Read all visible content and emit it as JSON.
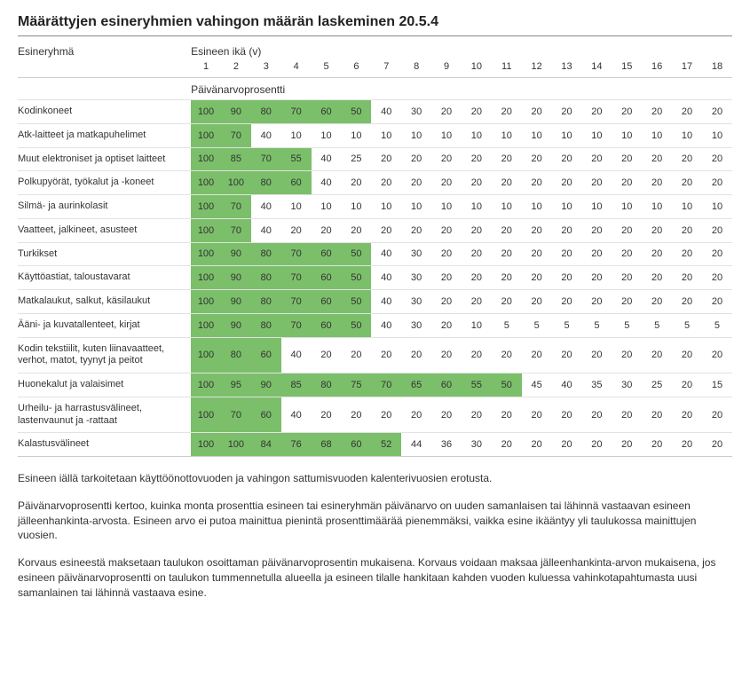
{
  "title": "Määrättyjen esineryhmien vahingon määrän laskeminen 20.5.4",
  "colhdr_label": "Esineryhmä",
  "colhdr_age": "Esineen ikä (v)",
  "colhdr_pct": "Päivänarvoprosentti",
  "years": [
    "1",
    "2",
    "3",
    "4",
    "5",
    "6",
    "7",
    "8",
    "9",
    "10",
    "11",
    "12",
    "13",
    "14",
    "15",
    "16",
    "17",
    "18"
  ],
  "highlight_color": "#7bbf6a",
  "rows": [
    {
      "label": "Kodinkoneet",
      "vals": [
        100,
        90,
        80,
        70,
        60,
        50,
        40,
        30,
        20,
        20,
        20,
        20,
        20,
        20,
        20,
        20,
        20,
        20
      ],
      "hl": 6
    },
    {
      "label": "Atk-laitteet ja matkapuhelimet",
      "vals": [
        100,
        70,
        40,
        10,
        10,
        10,
        10,
        10,
        10,
        10,
        10,
        10,
        10,
        10,
        10,
        10,
        10,
        10
      ],
      "hl": 2
    },
    {
      "label": "Muut elektroniset ja optiset laitteet",
      "vals": [
        100,
        85,
        70,
        55,
        40,
        25,
        20,
        20,
        20,
        20,
        20,
        20,
        20,
        20,
        20,
        20,
        20,
        20
      ],
      "hl": 4
    },
    {
      "label": "Polkupyörät, työkalut ja -koneet",
      "vals": [
        100,
        100,
        80,
        60,
        40,
        20,
        20,
        20,
        20,
        20,
        20,
        20,
        20,
        20,
        20,
        20,
        20,
        20
      ],
      "hl": 4
    },
    {
      "label": "Silmä- ja aurinkolasit",
      "vals": [
        100,
        70,
        40,
        10,
        10,
        10,
        10,
        10,
        10,
        10,
        10,
        10,
        10,
        10,
        10,
        10,
        10,
        10
      ],
      "hl": 2
    },
    {
      "label": "Vaatteet, jalkineet, asusteet",
      "vals": [
        100,
        70,
        40,
        20,
        20,
        20,
        20,
        20,
        20,
        20,
        20,
        20,
        20,
        20,
        20,
        20,
        20,
        20
      ],
      "hl": 2
    },
    {
      "label": "Turkikset",
      "vals": [
        100,
        90,
        80,
        70,
        60,
        50,
        40,
        30,
        20,
        20,
        20,
        20,
        20,
        20,
        20,
        20,
        20,
        20
      ],
      "hl": 6
    },
    {
      "label": "Käyttöastiat, taloustavarat",
      "vals": [
        100,
        90,
        80,
        70,
        60,
        50,
        40,
        30,
        20,
        20,
        20,
        20,
        20,
        20,
        20,
        20,
        20,
        20
      ],
      "hl": 6
    },
    {
      "label": "Matkalaukut, salkut, käsilaukut",
      "vals": [
        100,
        90,
        80,
        70,
        60,
        50,
        40,
        30,
        20,
        20,
        20,
        20,
        20,
        20,
        20,
        20,
        20,
        20
      ],
      "hl": 6
    },
    {
      "label": "Ääni- ja kuvatallenteet, kirjat",
      "vals": [
        100,
        90,
        80,
        70,
        60,
        50,
        40,
        30,
        20,
        10,
        5,
        5,
        5,
        5,
        5,
        5,
        5,
        5
      ],
      "hl": 6
    },
    {
      "label": "Kodin tekstiilit, kuten liinavaatteet, verhot, matot, tyynyt ja peitot",
      "vals": [
        100,
        80,
        60,
        40,
        20,
        20,
        20,
        20,
        20,
        20,
        20,
        20,
        20,
        20,
        20,
        20,
        20,
        20
      ],
      "hl": 3
    },
    {
      "label": "Huonekalut ja valaisimet",
      "vals": [
        100,
        95,
        90,
        85,
        80,
        75,
        70,
        65,
        60,
        55,
        50,
        45,
        40,
        35,
        30,
        25,
        20,
        15
      ],
      "hl": 11
    },
    {
      "label": "Urheilu- ja harrastusvälineet, lastenvaunut ja -rattaat",
      "vals": [
        100,
        70,
        60,
        40,
        20,
        20,
        20,
        20,
        20,
        20,
        20,
        20,
        20,
        20,
        20,
        20,
        20,
        20
      ],
      "hl": 3
    },
    {
      "label": "Kalastusvälineet",
      "vals": [
        100,
        100,
        84,
        76,
        68,
        60,
        52,
        44,
        36,
        30,
        20,
        20,
        20,
        20,
        20,
        20,
        20,
        20
      ],
      "hl": 7
    }
  ],
  "notes": [
    "Esineen iällä tarkoitetaan käyttöönottovuoden ja vahingon sattumisvuoden kalenterivuosien erotusta.",
    "Päivänarvoprosentti kertoo, kuinka monta prosenttia esineen tai esineryhmän päivänarvo on uuden samanlaisen tai lähinnä vastaavan esineen jälleenhankinta-arvosta. Esineen arvo ei putoa mainittua pienintä prosenttimäärää pienemmäksi, vaikka esine ikääntyy yli taulukossa mainittujen vuosien.",
    "Korvaus esineestä maksetaan taulukon osoittaman päivänarvoprosentin mukaisena. Korvaus voidaan maksaa jälleenhankinta-arvon mukaisena, jos esineen päivänarvoprosentti on taulukon tummennetulla alueella ja esineen tilalle hankitaan kahden vuoden kuluessa vahinkotapahtumasta uusi samanlainen tai lähinnä vastaava esine."
  ]
}
